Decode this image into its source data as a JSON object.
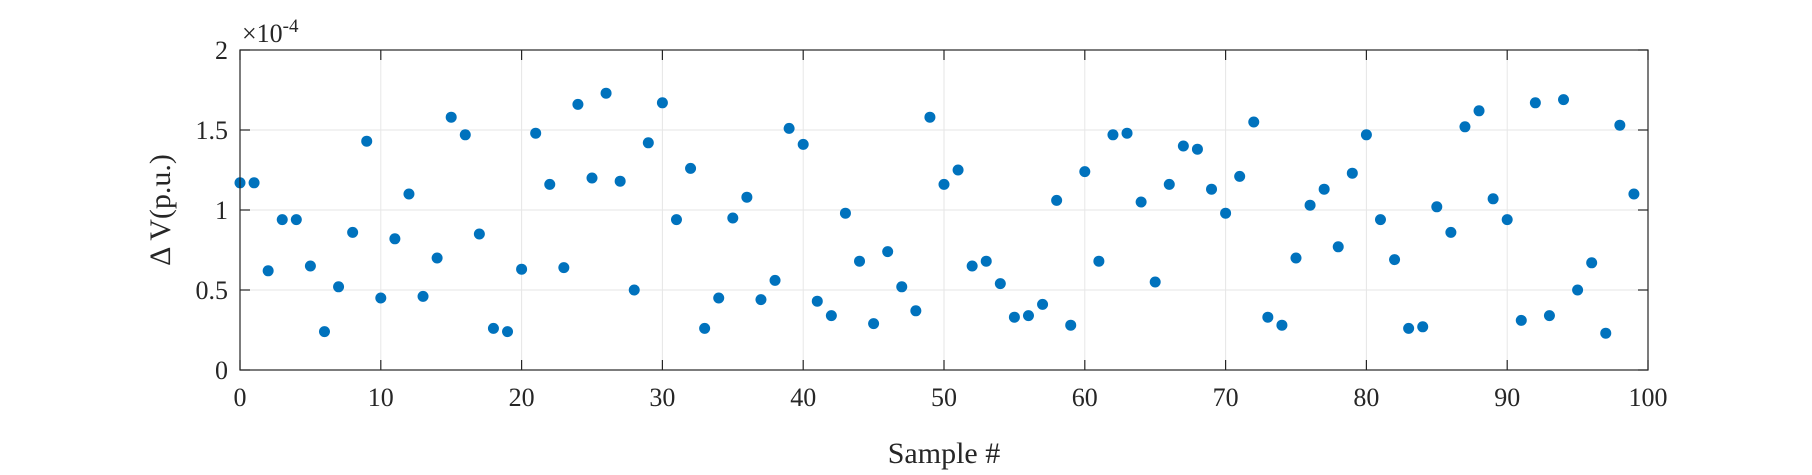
{
  "chart_data": {
    "type": "scatter",
    "xlabel": "Sample #",
    "ylabel": "Δ V(p.u.)",
    "y_exponent_label": "×10",
    "y_exponent_power": "-4",
    "xlim": [
      0,
      100
    ],
    "ylim": [
      0,
      2
    ],
    "x_ticks": [
      0,
      10,
      20,
      30,
      40,
      50,
      60,
      70,
      80,
      90,
      100
    ],
    "y_ticks": [
      0,
      0.5,
      1,
      1.5,
      2
    ],
    "x_tick_labels": [
      "0",
      "10",
      "20",
      "30",
      "40",
      "50",
      "60",
      "70",
      "80",
      "90",
      "100"
    ],
    "y_tick_labels": [
      "0",
      "0.5",
      "1",
      "1.5",
      "2"
    ],
    "grid": true,
    "marker_color": "#0072BD",
    "series": [
      {
        "x": [
          0,
          1,
          2,
          3,
          4,
          5,
          6,
          7,
          8,
          9,
          10,
          11,
          12,
          13,
          14,
          15,
          16,
          17,
          18,
          19,
          20,
          21,
          22,
          23,
          24,
          25,
          26,
          27,
          28,
          29,
          30,
          31,
          32,
          33,
          34,
          35,
          36,
          37,
          38,
          39,
          40,
          41,
          42,
          43,
          44,
          45,
          46,
          47,
          48,
          49,
          50,
          51,
          52,
          53,
          54,
          55,
          56,
          57,
          58,
          59,
          60,
          61,
          62,
          63,
          64,
          65,
          66,
          67,
          68,
          69,
          70,
          71,
          72,
          73,
          74,
          75,
          76,
          77,
          78,
          79,
          80,
          81,
          82,
          83,
          84,
          85,
          86,
          87,
          88,
          89,
          90,
          91,
          92,
          93,
          94,
          95,
          96,
          97,
          98,
          99
        ],
        "y": [
          1.17,
          1.17,
          0.62,
          0.94,
          0.94,
          0.65,
          0.24,
          0.52,
          0.86,
          1.43,
          0.45,
          0.82,
          1.1,
          0.46,
          0.7,
          1.58,
          1.47,
          0.85,
          0.26,
          0.24,
          0.63,
          1.48,
          1.16,
          0.64,
          1.66,
          1.2,
          1.73,
          1.18,
          0.5,
          1.42,
          1.67,
          0.94,
          1.26,
          0.26,
          0.45,
          0.95,
          1.08,
          0.44,
          0.56,
          1.51,
          1.41,
          0.43,
          0.34,
          0.98,
          0.68,
          0.29,
          0.74,
          0.52,
          0.37,
          1.58,
          1.16,
          1.25,
          0.65,
          0.68,
          0.54,
          0.33,
          0.34,
          0.41,
          1.06,
          0.28,
          1.24,
          0.68,
          1.47,
          1.48,
          1.05,
          0.55,
          1.16,
          1.4,
          1.38,
          1.13,
          0.98,
          1.21,
          1.55,
          0.33,
          0.28,
          0.7,
          1.03,
          1.13,
          0.77,
          1.23,
          1.47,
          0.94,
          0.69,
          0.26,
          0.27,
          1.02,
          0.86,
          1.52,
          1.62,
          1.07,
          0.94,
          0.31,
          1.67,
          0.34,
          1.69,
          0.5,
          0.67,
          0.23,
          1.53,
          1.1
        ]
      }
    ]
  }
}
